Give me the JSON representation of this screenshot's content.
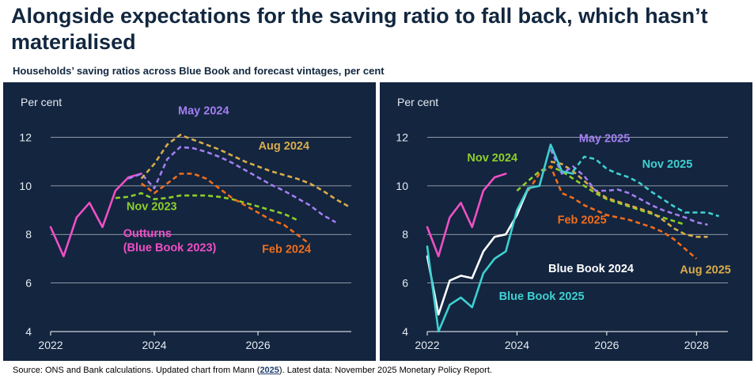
{
  "title": "Alongside expectations for the saving ratio to fall back, which hasn’t materialised",
  "subtitle": "Households’ saving ratios across Blue Book and forecast vintages, per cent",
  "source": {
    "prefix": "Source: ONS and Bank calculations. Updated chart from Mann (",
    "link": "2025",
    "suffix": "). Latest data: November 2025 Monetary Policy Report."
  },
  "chart_data": [
    {
      "type": "line",
      "ylabel": "Per cent",
      "ylim": [
        4,
        12.7
      ],
      "xlim": [
        2022,
        2027.8
      ],
      "yticks": [
        4,
        6,
        8,
        10,
        12
      ],
      "xticks": [
        2022,
        2024,
        2026
      ],
      "grid": true,
      "series": [
        {
          "name": "Outturns\n(Blue Book 2023)",
          "label": "Outturns\n(Blue Book 2023)",
          "color": "#f04fc4",
          "dash": false,
          "label_at": [
            2023.4,
            7.9
          ],
          "label_anchor": "start",
          "x": [
            2022.0,
            2022.25,
            2022.5,
            2022.75,
            2023.0,
            2023.25,
            2023.5,
            2023.75
          ],
          "y": [
            8.3,
            7.1,
            8.7,
            9.3,
            8.3,
            9.8,
            10.35,
            10.5
          ]
        },
        {
          "name": "Nov 2023",
          "label": "Nov 2023",
          "color": "#8ecf28",
          "dash": true,
          "label_at": [
            2023.95,
            9.0
          ],
          "label_anchor": "middle",
          "x": [
            2023.25,
            2023.5,
            2023.75,
            2024.0,
            2024.25,
            2024.5,
            2024.75,
            2025.0,
            2025.25,
            2025.5,
            2025.75,
            2026.0,
            2026.25,
            2026.5,
            2026.75
          ],
          "y": [
            9.5,
            9.55,
            9.7,
            9.45,
            9.5,
            9.6,
            9.6,
            9.6,
            9.55,
            9.45,
            9.3,
            9.15,
            9.0,
            8.85,
            8.6
          ]
        },
        {
          "name": "Feb 2024",
          "label": "Feb 2024",
          "color": "#f06d1b",
          "dash": true,
          "label_at": [
            2026.55,
            7.25
          ],
          "label_anchor": "middle",
          "x": [
            2023.75,
            2024.0,
            2024.25,
            2024.5,
            2024.75,
            2025.0,
            2025.25,
            2025.5,
            2025.75,
            2026.0,
            2026.25,
            2026.5,
            2026.75,
            2027.0
          ],
          "y": [
            10.1,
            9.7,
            10.1,
            10.5,
            10.5,
            10.3,
            9.9,
            9.5,
            9.2,
            8.9,
            8.6,
            8.4,
            8.0,
            7.6
          ]
        },
        {
          "name": "May 2024",
          "label": "May 2024",
          "color": "#a37ef0",
          "dash": true,
          "label_at": [
            2024.95,
            12.95
          ],
          "label_anchor": "middle",
          "x": [
            2023.5,
            2023.75,
            2024.0,
            2024.25,
            2024.5,
            2024.75,
            2025.0,
            2025.25,
            2025.5,
            2025.75,
            2026.0,
            2026.25,
            2026.5,
            2026.75,
            2027.0,
            2027.25,
            2027.5
          ],
          "y": [
            10.3,
            10.5,
            9.9,
            11.1,
            11.6,
            11.55,
            11.4,
            11.2,
            10.95,
            10.65,
            10.35,
            10.05,
            9.8,
            9.5,
            9.2,
            8.8,
            8.5
          ]
        },
        {
          "name": "Aug 2024",
          "label": "Aug 2024",
          "color": "#d9ac4a",
          "dash": true,
          "label_at": [
            2026.5,
            11.5
          ],
          "label_anchor": "middle",
          "x": [
            2023.75,
            2024.0,
            2024.25,
            2024.5,
            2024.75,
            2025.0,
            2025.25,
            2025.5,
            2025.75,
            2026.0,
            2026.25,
            2026.5,
            2026.75,
            2027.0,
            2027.25,
            2027.5,
            2027.75
          ],
          "y": [
            10.3,
            10.9,
            11.7,
            12.1,
            11.9,
            11.7,
            11.5,
            11.25,
            11.0,
            10.8,
            10.6,
            10.45,
            10.3,
            10.1,
            9.8,
            9.45,
            9.15
          ]
        }
      ]
    },
    {
      "type": "line",
      "ylabel": "Per cent",
      "ylim": [
        4,
        12.7
      ],
      "xlim": [
        2022,
        2028.7
      ],
      "yticks": [
        4,
        6,
        8,
        10,
        12
      ],
      "xticks": [
        2022,
        2024,
        2026,
        2028
      ],
      "grid": true,
      "series": [
        {
          "name": "Nov 2024",
          "label": "Nov 2024",
          "color": "#8ecf28",
          "dash": true,
          "label_at": [
            2023.45,
            11.0
          ],
          "label_anchor": "middle",
          "x": [
            2024.0,
            2024.25,
            2024.5,
            2024.75,
            2025.0,
            2025.25,
            2025.5,
            2025.75,
            2026.0,
            2026.25,
            2026.5,
            2026.75,
            2027.0,
            2027.25,
            2027.5,
            2027.75
          ],
          "y": [
            9.8,
            10.2,
            10.6,
            10.8,
            10.6,
            10.3,
            10.0,
            9.7,
            9.45,
            9.3,
            9.15,
            9.0,
            8.85,
            8.7,
            8.55,
            8.4
          ]
        },
        {
          "name": "Feb 2025",
          "label": "Feb 2025",
          "color": "#f06d1b",
          "dash": true,
          "label_at": [
            2025.45,
            8.45
          ],
          "label_anchor": "middle",
          "x": [
            2024.25,
            2024.5,
            2024.75,
            2025.0,
            2025.25,
            2025.5,
            2025.75,
            2026.0,
            2026.25,
            2026.5,
            2026.75,
            2027.0,
            2027.25,
            2027.5,
            2027.75,
            2028.0
          ],
          "y": [
            9.8,
            10.5,
            10.8,
            9.7,
            9.5,
            9.2,
            9.0,
            8.8,
            8.7,
            8.6,
            8.45,
            8.3,
            8.1,
            7.8,
            7.4,
            7.0
          ]
        },
        {
          "name": "Aug 2025",
          "label": "Aug 2025",
          "color": "#d9ac4a",
          "dash": true,
          "label_at": [
            2028.2,
            6.4
          ],
          "label_anchor": "middle",
          "x": [
            2024.75,
            2025.0,
            2025.25,
            2025.5,
            2025.75,
            2026.0,
            2026.25,
            2026.5,
            2026.75,
            2027.0,
            2027.25,
            2027.5,
            2027.75,
            2028.0,
            2028.25
          ],
          "y": [
            11.0,
            10.9,
            10.6,
            10.2,
            9.8,
            9.5,
            9.35,
            9.2,
            9.05,
            8.9,
            8.6,
            8.25,
            8.0,
            7.9,
            7.9
          ]
        },
        {
          "name": "May 2025",
          "label": "May 2025",
          "color": "#a37ef0",
          "dash": true,
          "label_at": [
            2025.95,
            11.8
          ],
          "label_anchor": "middle",
          "x": [
            2024.75,
            2025.0,
            2025.25,
            2025.5,
            2025.75,
            2026.0,
            2026.25,
            2026.5,
            2026.75,
            2027.0,
            2027.25,
            2027.5,
            2027.75,
            2028.0,
            2028.25
          ],
          "y": [
            11.5,
            10.5,
            10.8,
            10.4,
            9.8,
            9.8,
            9.85,
            9.7,
            9.45,
            9.2,
            9.0,
            8.85,
            8.7,
            8.5,
            8.4
          ]
        },
        {
          "name": "Nov 2025",
          "label": "Nov 2025",
          "color": "#3ed0d0",
          "dash": true,
          "label_at": [
            2027.35,
            10.75
          ],
          "label_anchor": "middle",
          "x": [
            2025.25,
            2025.5,
            2025.75,
            2026.0,
            2026.25,
            2026.5,
            2026.75,
            2027.0,
            2027.25,
            2027.5,
            2027.75,
            2028.0,
            2028.25,
            2028.5
          ],
          "y": [
            10.6,
            11.2,
            11.1,
            10.7,
            10.5,
            10.35,
            10.1,
            9.75,
            9.45,
            9.15,
            8.9,
            8.9,
            8.9,
            8.75
          ]
        },
        {
          "name": "Blue Book 2024",
          "label": "Blue Book 2024",
          "color": "#ffffff",
          "dash": false,
          "label_at": [
            2025.65,
            6.45
          ],
          "label_anchor": "middle",
          "x": [
            2022.0,
            2022.25,
            2022.5,
            2022.75,
            2023.0,
            2023.25,
            2023.5,
            2023.75,
            2024.0,
            2024.25
          ],
          "y": [
            7.1,
            4.7,
            6.1,
            6.3,
            6.2,
            7.3,
            7.9,
            8.0,
            8.8,
            9.9
          ]
        },
        {
          "name": "Blue Book 2025",
          "label": "Blue Book 2025",
          "color": "#3ed0d0",
          "dash": false,
          "label_at": [
            2024.55,
            5.3
          ],
          "label_anchor": "middle",
          "x": [
            2022.0,
            2022.25,
            2022.5,
            2022.75,
            2023.0,
            2023.25,
            2023.5,
            2023.75,
            2024.0,
            2024.25,
            2024.5,
            2024.75,
            2025.0,
            2025.25
          ],
          "y": [
            7.5,
            4.0,
            5.1,
            5.4,
            5.0,
            6.4,
            7.0,
            7.3,
            9.0,
            9.9,
            10.0,
            11.7,
            10.6,
            10.5
          ]
        },
        {
          "name": "Outturns",
          "label": "",
          "color": "#f04fc4",
          "dash": false,
          "label_at": null,
          "label_anchor": "middle",
          "x": [
            2022.0,
            2022.25,
            2022.5,
            2022.75,
            2023.0,
            2023.25,
            2023.5,
            2023.75
          ],
          "y": [
            8.3,
            7.1,
            8.7,
            9.3,
            8.3,
            9.8,
            10.35,
            10.5
          ]
        }
      ]
    }
  ]
}
